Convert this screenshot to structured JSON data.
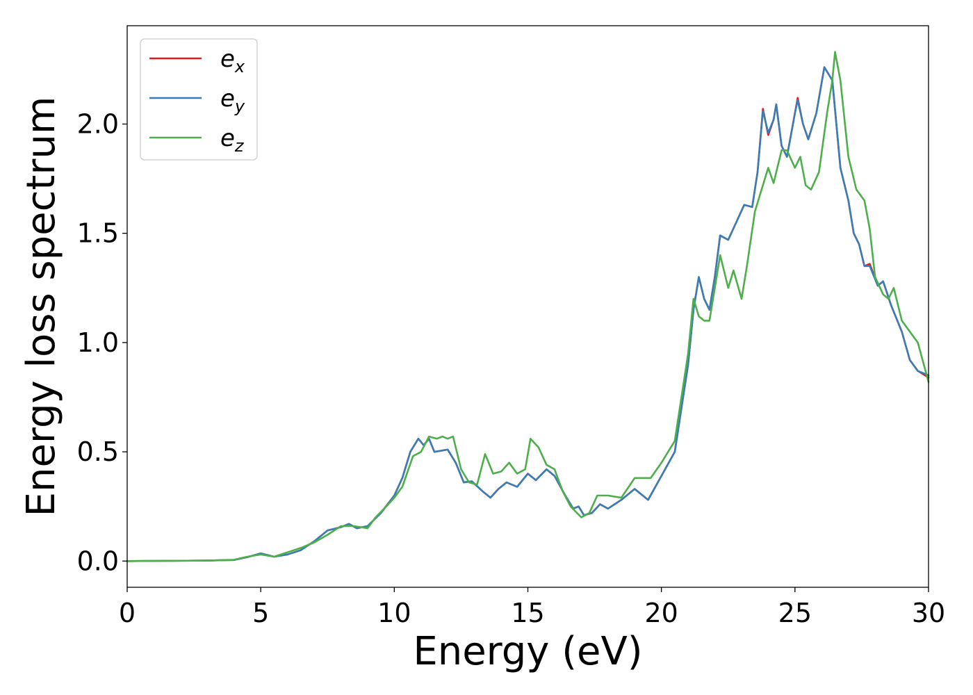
{
  "chart_data": {
    "type": "line",
    "xlabel": "Energy (eV)",
    "ylabel": "Energy loss spectrum",
    "xlim": [
      0,
      30
    ],
    "ylim": [
      -0.12,
      2.45
    ],
    "x_ticks": [
      0,
      5,
      10,
      15,
      20,
      25,
      30
    ],
    "y_ticks": [
      0.0,
      0.5,
      1.0,
      1.5,
      2.0
    ],
    "grid": false,
    "legend_position": "upper-left",
    "series": [
      {
        "name": "e_x",
        "color": "#e41a1c",
        "points": [
          [
            0,
            0
          ],
          [
            3,
            0.002
          ],
          [
            4,
            0.005
          ],
          [
            4.5,
            0.018
          ],
          [
            5,
            0.035
          ],
          [
            5.5,
            0.02
          ],
          [
            6,
            0.03
          ],
          [
            6.5,
            0.05
          ],
          [
            7,
            0.09
          ],
          [
            7.5,
            0.14
          ],
          [
            8,
            0.155
          ],
          [
            8.3,
            0.17
          ],
          [
            8.6,
            0.15
          ],
          [
            9,
            0.16
          ],
          [
            9.5,
            0.22
          ],
          [
            10,
            0.3
          ],
          [
            10.3,
            0.38
          ],
          [
            10.6,
            0.5
          ],
          [
            10.9,
            0.56
          ],
          [
            11.1,
            0.53
          ],
          [
            11.3,
            0.56
          ],
          [
            11.5,
            0.5
          ],
          [
            12,
            0.51
          ],
          [
            12.3,
            0.45
          ],
          [
            12.6,
            0.36
          ],
          [
            12.9,
            0.365
          ],
          [
            13.3,
            0.32
          ],
          [
            13.6,
            0.29
          ],
          [
            13.9,
            0.33
          ],
          [
            14.2,
            0.36
          ],
          [
            14.6,
            0.34
          ],
          [
            15,
            0.4
          ],
          [
            15.3,
            0.37
          ],
          [
            15.7,
            0.42
          ],
          [
            16,
            0.39
          ],
          [
            16.4,
            0.3
          ],
          [
            16.7,
            0.24
          ],
          [
            16.9,
            0.25
          ],
          [
            17.1,
            0.21
          ],
          [
            17.4,
            0.22
          ],
          [
            17.7,
            0.26
          ],
          [
            18,
            0.24
          ],
          [
            18.5,
            0.28
          ],
          [
            19,
            0.33
          ],
          [
            19.5,
            0.28
          ],
          [
            20,
            0.39
          ],
          [
            20.5,
            0.5
          ],
          [
            21,
            0.9
          ],
          [
            21.2,
            1.15
          ],
          [
            21.4,
            1.3
          ],
          [
            21.6,
            1.2
          ],
          [
            21.8,
            1.15
          ],
          [
            22,
            1.3
          ],
          [
            22.2,
            1.49
          ],
          [
            22.5,
            1.47
          ],
          [
            22.8,
            1.55
          ],
          [
            23.1,
            1.63
          ],
          [
            23.4,
            1.62
          ],
          [
            23.6,
            1.78
          ],
          [
            23.8,
            2.07
          ],
          [
            24.0,
            1.95
          ],
          [
            24.2,
            2.02
          ],
          [
            24.3,
            2.09
          ],
          [
            24.5,
            1.9
          ],
          [
            24.7,
            1.85
          ],
          [
            25.0,
            2.05
          ],
          [
            25.1,
            2.12
          ],
          [
            25.3,
            2.0
          ],
          [
            25.5,
            1.93
          ],
          [
            25.8,
            2.05
          ],
          [
            26.1,
            2.26
          ],
          [
            26.4,
            2.2
          ],
          [
            26.7,
            1.8
          ],
          [
            27.0,
            1.65
          ],
          [
            27.2,
            1.5
          ],
          [
            27.4,
            1.45
          ],
          [
            27.6,
            1.35
          ],
          [
            27.8,
            1.36
          ],
          [
            28.1,
            1.26
          ],
          [
            28.3,
            1.28
          ],
          [
            28.6,
            1.17
          ],
          [
            29.0,
            1.05
          ],
          [
            29.3,
            0.92
          ],
          [
            29.6,
            0.87
          ],
          [
            30,
            0.84
          ]
        ]
      },
      {
        "name": "e_y",
        "color": "#377eb8",
        "points": [
          [
            0,
            0
          ],
          [
            3,
            0.002
          ],
          [
            4,
            0.005
          ],
          [
            4.5,
            0.018
          ],
          [
            5,
            0.035
          ],
          [
            5.5,
            0.02
          ],
          [
            6,
            0.03
          ],
          [
            6.5,
            0.05
          ],
          [
            7,
            0.09
          ],
          [
            7.5,
            0.14
          ],
          [
            8,
            0.155
          ],
          [
            8.3,
            0.17
          ],
          [
            8.6,
            0.15
          ],
          [
            9,
            0.16
          ],
          [
            9.5,
            0.22
          ],
          [
            10,
            0.3
          ],
          [
            10.3,
            0.38
          ],
          [
            10.6,
            0.5
          ],
          [
            10.9,
            0.56
          ],
          [
            11.1,
            0.53
          ],
          [
            11.3,
            0.56
          ],
          [
            11.5,
            0.5
          ],
          [
            12,
            0.51
          ],
          [
            12.3,
            0.45
          ],
          [
            12.6,
            0.36
          ],
          [
            12.9,
            0.365
          ],
          [
            13.3,
            0.32
          ],
          [
            13.6,
            0.29
          ],
          [
            13.9,
            0.33
          ],
          [
            14.2,
            0.36
          ],
          [
            14.6,
            0.34
          ],
          [
            15,
            0.4
          ],
          [
            15.3,
            0.37
          ],
          [
            15.7,
            0.42
          ],
          [
            16,
            0.39
          ],
          [
            16.4,
            0.3
          ],
          [
            16.7,
            0.24
          ],
          [
            16.9,
            0.25
          ],
          [
            17.1,
            0.21
          ],
          [
            17.4,
            0.22
          ],
          [
            17.7,
            0.26
          ],
          [
            18,
            0.24
          ],
          [
            18.5,
            0.28
          ],
          [
            19,
            0.33
          ],
          [
            19.5,
            0.28
          ],
          [
            20,
            0.39
          ],
          [
            20.5,
            0.5
          ],
          [
            21,
            0.9
          ],
          [
            21.2,
            1.15
          ],
          [
            21.4,
            1.3
          ],
          [
            21.6,
            1.2
          ],
          [
            21.8,
            1.15
          ],
          [
            22,
            1.3
          ],
          [
            22.2,
            1.49
          ],
          [
            22.5,
            1.47
          ],
          [
            22.8,
            1.55
          ],
          [
            23.1,
            1.63
          ],
          [
            23.4,
            1.62
          ],
          [
            23.6,
            1.78
          ],
          [
            23.8,
            2.06
          ],
          [
            24.0,
            1.96
          ],
          [
            24.2,
            2.02
          ],
          [
            24.3,
            2.09
          ],
          [
            24.5,
            1.9
          ],
          [
            24.7,
            1.85
          ],
          [
            25.0,
            2.05
          ],
          [
            25.1,
            2.11
          ],
          [
            25.3,
            2.0
          ],
          [
            25.5,
            1.93
          ],
          [
            25.8,
            2.05
          ],
          [
            26.1,
            2.26
          ],
          [
            26.4,
            2.2
          ],
          [
            26.7,
            1.8
          ],
          [
            27.0,
            1.65
          ],
          [
            27.2,
            1.5
          ],
          [
            27.4,
            1.45
          ],
          [
            27.6,
            1.35
          ],
          [
            27.8,
            1.35
          ],
          [
            28.1,
            1.26
          ],
          [
            28.3,
            1.28
          ],
          [
            28.6,
            1.17
          ],
          [
            29.0,
            1.05
          ],
          [
            29.3,
            0.92
          ],
          [
            29.6,
            0.87
          ],
          [
            30,
            0.85
          ]
        ]
      },
      {
        "name": "e_z",
        "color": "#4daf4a",
        "points": [
          [
            0,
            0
          ],
          [
            3,
            0.002
          ],
          [
            4,
            0.006
          ],
          [
            4.5,
            0.02
          ],
          [
            5,
            0.03
          ],
          [
            5.5,
            0.02
          ],
          [
            6,
            0.04
          ],
          [
            6.5,
            0.06
          ],
          [
            7,
            0.085
          ],
          [
            7.5,
            0.12
          ],
          [
            8,
            0.16
          ],
          [
            8.5,
            0.16
          ],
          [
            9,
            0.15
          ],
          [
            9.3,
            0.2
          ],
          [
            9.7,
            0.25
          ],
          [
            10,
            0.29
          ],
          [
            10.3,
            0.34
          ],
          [
            10.7,
            0.48
          ],
          [
            11,
            0.5
          ],
          [
            11.3,
            0.57
          ],
          [
            11.6,
            0.56
          ],
          [
            11.8,
            0.57
          ],
          [
            12.0,
            0.56
          ],
          [
            12.2,
            0.57
          ],
          [
            12.5,
            0.42
          ],
          [
            12.8,
            0.36
          ],
          [
            13.1,
            0.35
          ],
          [
            13.4,
            0.49
          ],
          [
            13.7,
            0.4
          ],
          [
            14.0,
            0.41
          ],
          [
            14.3,
            0.45
          ],
          [
            14.6,
            0.4
          ],
          [
            14.9,
            0.42
          ],
          [
            15.1,
            0.56
          ],
          [
            15.4,
            0.52
          ],
          [
            15.7,
            0.44
          ],
          [
            16.0,
            0.42
          ],
          [
            16.3,
            0.32
          ],
          [
            16.6,
            0.25
          ],
          [
            17.0,
            0.2
          ],
          [
            17.3,
            0.22
          ],
          [
            17.6,
            0.3
          ],
          [
            18.0,
            0.3
          ],
          [
            18.5,
            0.29
          ],
          [
            19.0,
            0.38
          ],
          [
            19.3,
            0.38
          ],
          [
            19.6,
            0.38
          ],
          [
            20.0,
            0.45
          ],
          [
            20.5,
            0.55
          ],
          [
            21.0,
            0.95
          ],
          [
            21.2,
            1.2
          ],
          [
            21.4,
            1.12
          ],
          [
            21.6,
            1.1
          ],
          [
            21.8,
            1.1
          ],
          [
            22.0,
            1.25
          ],
          [
            22.2,
            1.4
          ],
          [
            22.5,
            1.25
          ],
          [
            22.7,
            1.33
          ],
          [
            23.0,
            1.2
          ],
          [
            23.2,
            1.35
          ],
          [
            23.5,
            1.6
          ],
          [
            23.8,
            1.72
          ],
          [
            24.0,
            1.8
          ],
          [
            24.2,
            1.73
          ],
          [
            24.5,
            1.88
          ],
          [
            24.7,
            1.88
          ],
          [
            25.0,
            1.8
          ],
          [
            25.2,
            1.85
          ],
          [
            25.4,
            1.72
          ],
          [
            25.6,
            1.7
          ],
          [
            25.9,
            1.78
          ],
          [
            26.2,
            2.05
          ],
          [
            26.4,
            2.2
          ],
          [
            26.5,
            2.33
          ],
          [
            26.7,
            2.2
          ],
          [
            27.0,
            1.85
          ],
          [
            27.3,
            1.7
          ],
          [
            27.6,
            1.65
          ],
          [
            27.8,
            1.52
          ],
          [
            28.0,
            1.3
          ],
          [
            28.3,
            1.22
          ],
          [
            28.5,
            1.2
          ],
          [
            28.7,
            1.25
          ],
          [
            29.0,
            1.1
          ],
          [
            29.3,
            1.05
          ],
          [
            29.6,
            1.0
          ],
          [
            30,
            0.82
          ]
        ]
      }
    ]
  }
}
